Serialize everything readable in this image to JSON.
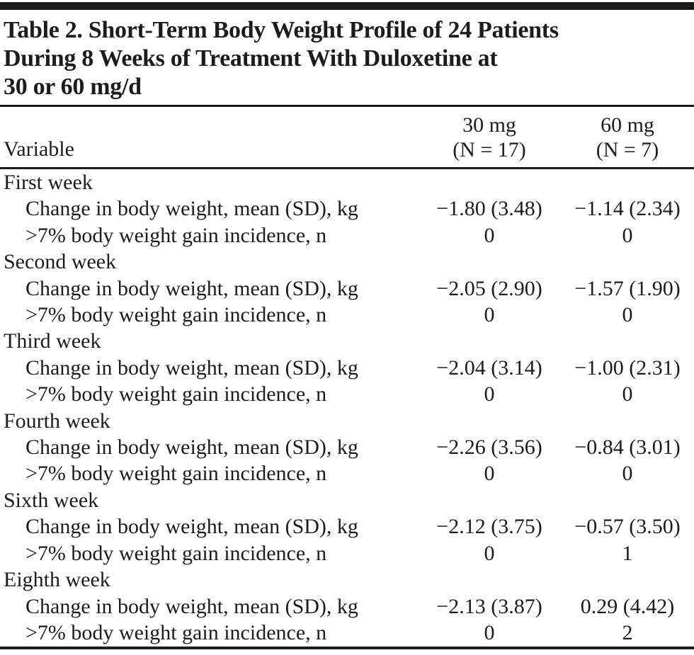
{
  "table": {
    "title_lines": [
      "Table 2. Short-Term Body Weight Profile of 24 Patients",
      "During 8 Weeks of Treatment With Duloxetine at",
      "30 or 60 mg/d"
    ],
    "header": {
      "variable_label": "Variable",
      "col_30mg_line1": "30 mg",
      "col_30mg_line2": "(N = 17)",
      "col_60mg_line1": "60 mg",
      "col_60mg_line2": "(N = 7)"
    },
    "row_labels": {
      "change": "Change in body weight, mean (SD), kg",
      "incidence": ">7% body weight gain incidence, n"
    },
    "groups": [
      {
        "period": "First week",
        "change_30": "−1.80 (3.48)",
        "change_60": "−1.14 (2.34)",
        "incidence_30": "0",
        "incidence_60": "0"
      },
      {
        "period": "Second week",
        "change_30": "−2.05 (2.90)",
        "change_60": "−1.57 (1.90)",
        "incidence_30": "0",
        "incidence_60": "0"
      },
      {
        "period": "Third week",
        "change_30": "−2.04 (3.14)",
        "change_60": "−1.00 (2.31)",
        "incidence_30": "0",
        "incidence_60": "0"
      },
      {
        "period": "Fourth week",
        "change_30": "−2.26 (3.56)",
        "change_60": "−0.84 (3.01)",
        "incidence_30": "0",
        "incidence_60": "0"
      },
      {
        "period": "Sixth week",
        "change_30": "−2.12 (3.75)",
        "change_60": "−0.57 (3.50)",
        "incidence_30": "0",
        "incidence_60": "1"
      },
      {
        "period": "Eighth week",
        "change_30": "−2.13 (3.87)",
        "change_60": "0.29 (4.42)",
        "incidence_30": "0",
        "incidence_60": "2"
      }
    ],
    "colors": {
      "text": "#1c1c1c",
      "rule": "#1c1c1c",
      "background": "#ffffff"
    }
  }
}
